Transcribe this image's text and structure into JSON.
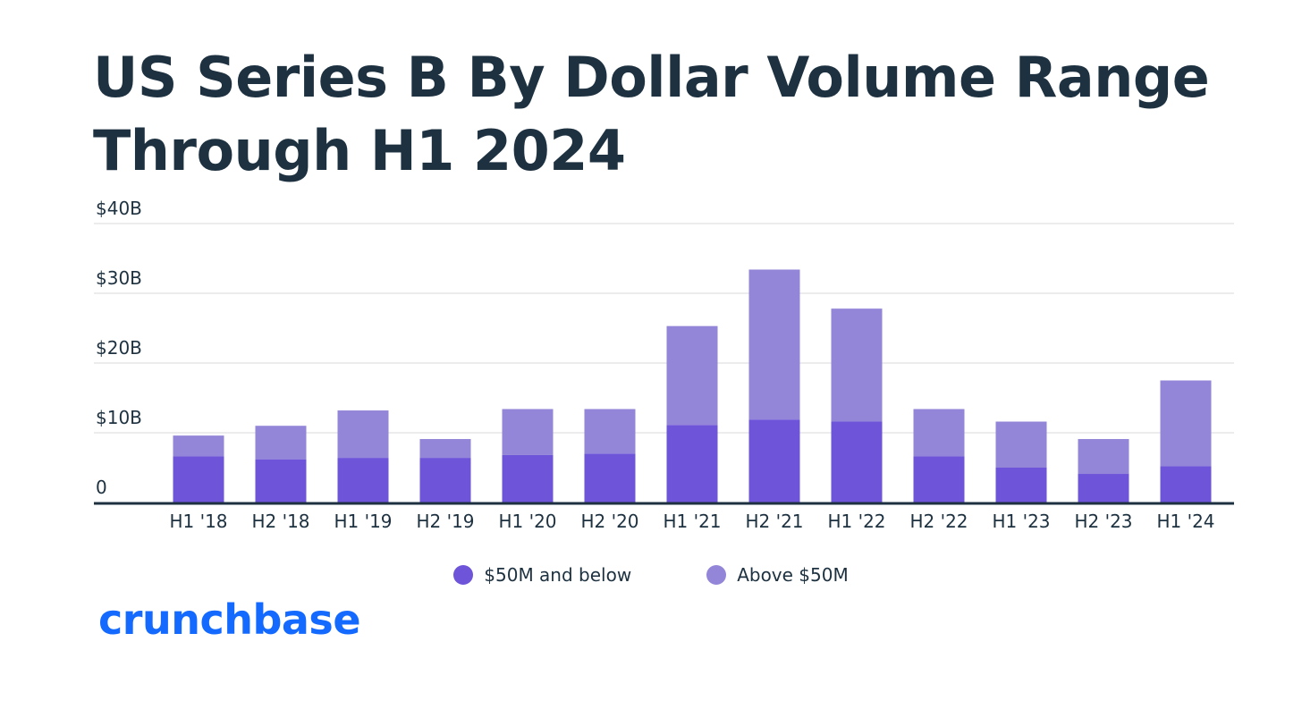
{
  "title_line1": "US Series B By Dollar Volume Range",
  "title_line2": "Through H1 2024",
  "logo_text": "crunchbase",
  "colors": {
    "title": "#1d3140",
    "below": "#6e54d9",
    "above": "#9386d8",
    "grid": "#e6e6e6",
    "axis": "#1d3140",
    "logo": "#146aff"
  },
  "chart_data": {
    "type": "bar",
    "stacked": true,
    "title": "US Series B By Dollar Volume Range Through H1 2024",
    "categories": [
      "H1 '18",
      "H2 '18",
      "H1 '19",
      "H2 '19",
      "H1 '20",
      "H2 '20",
      "H1 '21",
      "H2 '21",
      "H1 '22",
      "H2 '22",
      "H1 '23",
      "H2 '23",
      "H1 '24"
    ],
    "series": [
      {
        "name": "$50M and below",
        "values": [
          6.6,
          6.2,
          6.4,
          6.4,
          6.8,
          7.0,
          11.1,
          11.9,
          11.6,
          6.6,
          5.0,
          4.1,
          5.2
        ]
      },
      {
        "name": "Above $50M",
        "values": [
          3.0,
          4.8,
          6.8,
          2.7,
          6.6,
          6.4,
          14.2,
          21.5,
          16.2,
          6.8,
          6.6,
          5.0,
          12.3
        ]
      }
    ],
    "yticks": [
      0,
      10,
      20,
      30,
      40
    ],
    "ytick_labels": [
      "0",
      "$10B",
      "$20B",
      "$30B",
      "$40B"
    ],
    "ylim": [
      0,
      40
    ],
    "xlabel": "",
    "ylabel": "",
    "legend_position": "bottom-center",
    "grid": true
  }
}
